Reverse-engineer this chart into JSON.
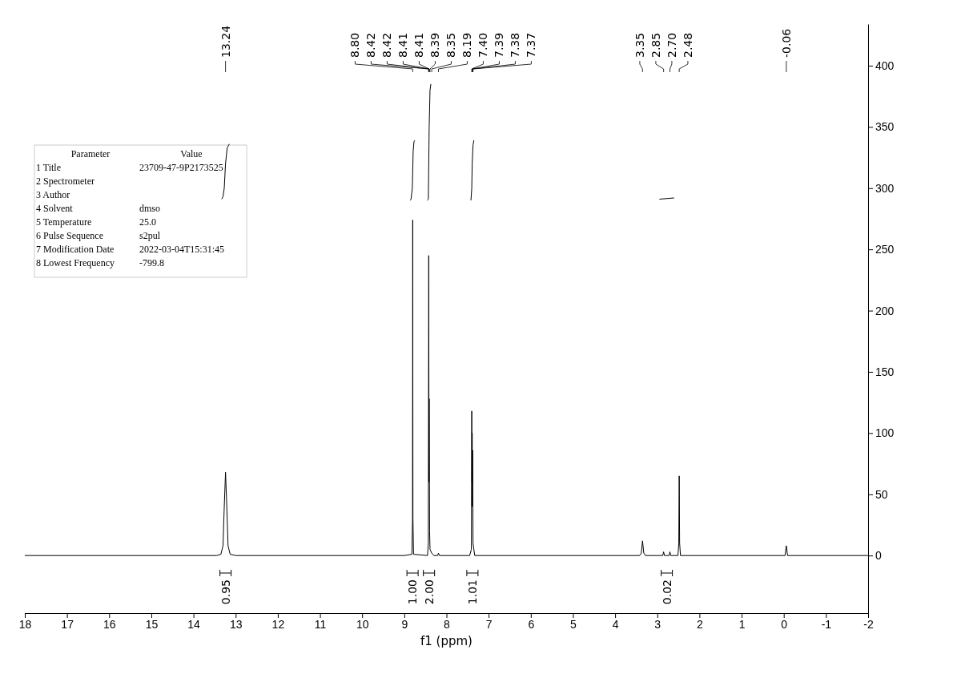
{
  "chart_data": {
    "type": "line",
    "xlabel": "f1 (ppm)",
    "xlim": [
      18,
      -2
    ],
    "xticks": [
      18,
      17,
      16,
      15,
      14,
      13,
      12,
      11,
      10,
      9,
      8,
      7,
      6,
      5,
      4,
      3,
      2,
      1,
      0,
      -1,
      -2
    ],
    "ylim": [
      -47,
      434
    ],
    "yticks": [
      0,
      50,
      100,
      150,
      200,
      250,
      300,
      350,
      400
    ],
    "grid": false,
    "marker": "none",
    "line_style": "solid",
    "series": [
      {
        "color": "#000000",
        "x": [
          18,
          13.45,
          13.35,
          13.3,
          13.27,
          13.24,
          13.21,
          13.18,
          13.13,
          13.0,
          9.0,
          8.82,
          8.805,
          8.8,
          8.795,
          8.78,
          8.45,
          8.43,
          8.42,
          8.415,
          8.41,
          8.4,
          8.39,
          8.35,
          8.3,
          8.21,
          8.19,
          8.17,
          7.45,
          7.41,
          7.4,
          7.395,
          7.39,
          7.385,
          7.38,
          7.37,
          7.33,
          3.42,
          3.38,
          3.35,
          3.32,
          3.28,
          2.87,
          2.85,
          2.83,
          2.72,
          2.7,
          2.68,
          2.51,
          2.49,
          2.48,
          2.47,
          2.45,
          -0.03,
          -0.06,
          -0.09,
          -2
        ],
        "values": [
          0,
          0,
          1,
          8,
          40,
          68,
          40,
          8,
          1,
          0,
          0,
          1,
          30,
          274,
          30,
          1,
          0,
          10,
          245,
          60,
          128,
          20,
          5,
          2,
          0,
          0,
          2,
          0,
          0,
          5,
          118,
          60,
          100,
          40,
          86,
          10,
          0,
          0,
          2,
          12,
          2,
          0,
          0,
          3,
          0,
          0,
          3,
          0,
          0,
          10,
          65,
          10,
          0,
          0,
          8,
          0,
          0
        ]
      },
      {
        "color": "#000000",
        "x": [
          13.33,
          13.3,
          13.27,
          13.24,
          13.2,
          13.15,
          13.1,
          8.86,
          8.84,
          8.81,
          8.79,
          8.77,
          8.75,
          8.7,
          8.46,
          8.43,
          8.42,
          8.41,
          8.39,
          8.37,
          8.3,
          7.42,
          7.4,
          7.39,
          7.37,
          7.35,
          7.3,
          2.95,
          2.6
        ],
        "values": [
          291,
          293,
          300,
          320,
          333,
          336,
          null,
          290,
          291,
          300,
          330,
          338,
          339,
          null,
          290,
          291,
          320,
          350,
          380,
          385,
          null,
          290,
          300,
          320,
          335,
          339,
          null,
          291,
          292
        ]
      }
    ],
    "annotations": [
      "Parameter\tValue",
      "1 Title\t23709-47-9P2173525",
      "2 Spectrometer",
      "3 Author",
      "4 Solvent\tdmso",
      "5 Temperature\t25.0",
      "6 Pulse Sequence\ts2pul",
      "7 Modification Date\t2022-03-04T15:31:45",
      "8 Lowest Frequency\t-799.8",
      {
        "text": "13.24",
        "x": 13.24
      },
      {
        "text": "8.80",
        "x": 8.8
      },
      {
        "text": "8.42",
        "x": 8.42
      },
      {
        "text": "8.42",
        "x": 8.42
      },
      {
        "text": "8.41",
        "x": 8.41
      },
      {
        "text": "8.41",
        "x": 8.41
      },
      {
        "text": "8.39",
        "x": 8.39
      },
      {
        "text": "8.35",
        "x": 8.35
      },
      {
        "text": "8.19",
        "x": 8.19
      },
      {
        "text": "7.40",
        "x": 7.4
      },
      {
        "text": "7.39",
        "x": 7.39
      },
      {
        "text": "7.38",
        "x": 7.38
      },
      {
        "text": "7.37",
        "x": 7.37
      },
      {
        "text": "3.35",
        "x": 3.35
      },
      {
        "text": "2.85",
        "x": 2.85
      },
      {
        "text": "2.70",
        "x": 2.7
      },
      {
        "text": "2.48",
        "x": 2.48
      },
      {
        "text": "-0.06",
        "x": -0.06
      },
      "0.95",
      "1.00",
      "2.00",
      "1.01",
      "0.02"
    ]
  }
}
